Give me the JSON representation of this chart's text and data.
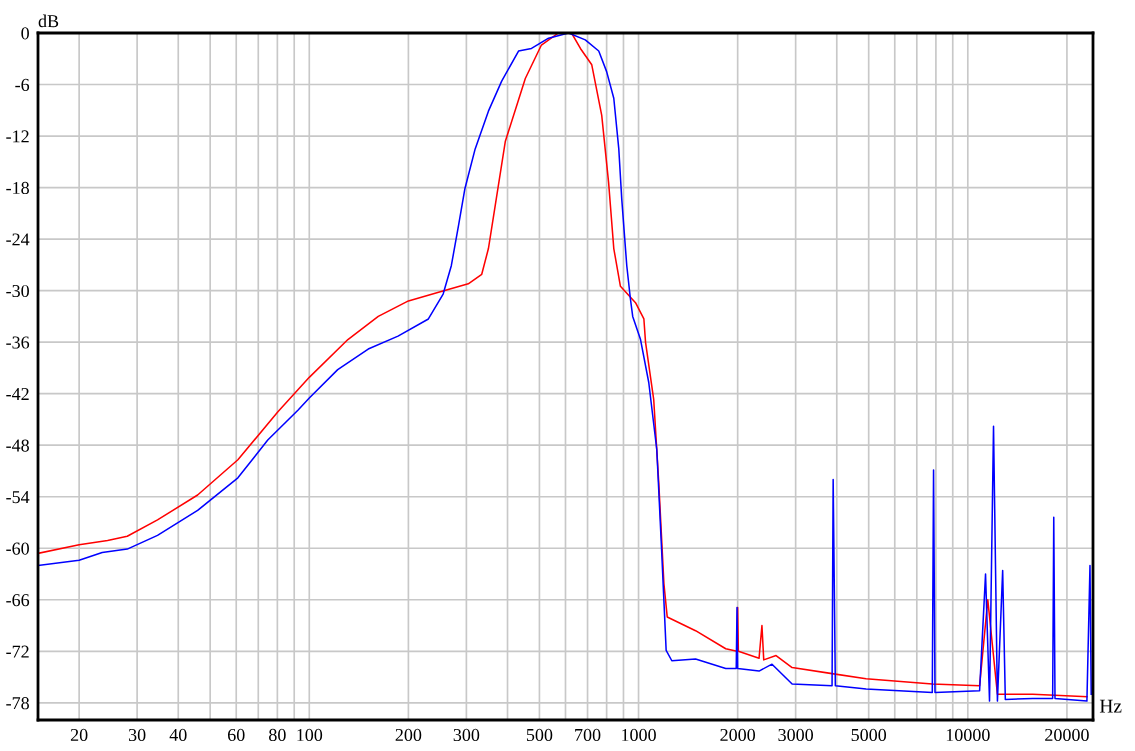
{
  "chart_data": {
    "type": "line",
    "xlabel": "Hz",
    "ylabel": "dB",
    "log": "x",
    "grid": true,
    "marker": "none",
    "line_style": "solid",
    "xlim": [
      15,
      24000
    ],
    "ylim": [
      -80,
      0
    ],
    "xticks": [
      20,
      30,
      40,
      {
        "value": 50,
        "label": null
      },
      60,
      {
        "value": 70,
        "label": null
      },
      80,
      {
        "value": 90,
        "label": null
      },
      100,
      200,
      300,
      {
        "value": 400,
        "label": null
      },
      500,
      {
        "value": 600,
        "label": null
      },
      700,
      {
        "value": 800,
        "label": null
      },
      {
        "value": 900,
        "label": null
      },
      1000,
      2000,
      3000,
      {
        "value": 4000,
        "label": null
      },
      5000,
      {
        "value": 6000,
        "label": null
      },
      {
        "value": 7000,
        "label": null
      },
      {
        "value": 8000,
        "label": null
      },
      {
        "value": 9000,
        "label": null
      },
      10000,
      20000
    ],
    "yticks": [
      0,
      -6,
      -12,
      -18,
      -24,
      -30,
      -36,
      -42,
      -48,
      -54,
      -60,
      -66,
      -72,
      -78
    ],
    "series": [
      {
        "color": "#ff0000",
        "x": [
          15,
          20,
          24.4,
          28,
          34.6,
          45.8,
          60.7,
          80.3,
          100,
          131,
          162,
          200,
          247,
          304,
          334,
          350,
          367,
          394,
          453,
          507,
          571,
          626,
          666,
          721,
          773,
          811,
          841,
          881,
          979,
          1038,
          1050,
          1112,
          1152,
          1194,
          1222,
          1490,
          1840,
          1991,
          2000,
          2010,
          2323,
          2370,
          2400,
          2616,
          2927,
          3870,
          4910,
          7800,
          10860,
          11500,
          12300,
          15740,
          23000
        ],
        "values": [
          -60.6,
          -59.6,
          -59.1,
          -58.6,
          -56.7,
          -53.8,
          -49.7,
          -44.1,
          -40.1,
          -35.7,
          -33,
          -31.2,
          -30.2,
          -29.2,
          -28.1,
          -25.1,
          -20.1,
          -12.6,
          -5.3,
          -1.4,
          0,
          0,
          -1.8,
          -3.7,
          -9.6,
          -17.4,
          -25.1,
          -29.5,
          -31.4,
          -33.3,
          -36,
          -42.7,
          -52.4,
          -64.1,
          -68,
          -69.6,
          -71.7,
          -72,
          -66.9,
          -72,
          -72.8,
          -69,
          -73,
          -72.5,
          -73.9,
          -74.6,
          -75.2,
          -75.8,
          -76,
          -66,
          -77,
          -77,
          -77.3
        ]
      },
      {
        "color": "#0000ff",
        "x": [
          15,
          20,
          23.5,
          28,
          34.6,
          45.8,
          60.7,
          74.8,
          92.5,
          100,
          122,
          151,
          186,
          230,
          255,
          270,
          284,
          297,
          319,
          350,
          384,
          432,
          473,
          533,
          613,
          689,
          757,
          800,
          841,
          871,
          889,
          921,
          945,
          960,
          1014,
          1074,
          1136,
          1175,
          1194,
          1213,
          1262,
          1490,
          1840,
          1980,
          1991,
          2000,
          2323,
          2543,
          2927,
          3870,
          3900,
          3960,
          4680,
          4910,
          7800,
          7870,
          7950,
          10860,
          11320,
          11640,
          11970,
          12300,
          12760,
          13000,
          15740,
          18100,
          18240,
          18400,
          23000,
          23500,
          23700
        ],
        "values": [
          -62,
          -61.4,
          -60.5,
          -60.1,
          -58.5,
          -55.6,
          -51.8,
          -47.4,
          -43.9,
          -42.5,
          -39.2,
          -36.8,
          -35.3,
          -33.3,
          -30.4,
          -27.1,
          -22.4,
          -18.1,
          -13.5,
          -9.1,
          -5.6,
          -2.1,
          -1.8,
          -0.6,
          0,
          -0.8,
          -2.1,
          -4.5,
          -7.6,
          -13.5,
          -19.3,
          -27.1,
          -31,
          -33,
          -35.7,
          -40.7,
          -48.5,
          -60.2,
          -66.1,
          -71.9,
          -73.1,
          -72.9,
          -74,
          -74,
          -66.9,
          -74,
          -74.3,
          -73.5,
          -75.8,
          -76,
          -52,
          -76,
          -76.3,
          -76.4,
          -76.8,
          -50.9,
          -76.8,
          -76.6,
          -63,
          -77.8,
          -45.8,
          -77.8,
          -62.6,
          -77.6,
          -77.5,
          -77.5,
          -56.4,
          -77.5,
          -77.8,
          -62,
          -77
        ]
      }
    ]
  }
}
